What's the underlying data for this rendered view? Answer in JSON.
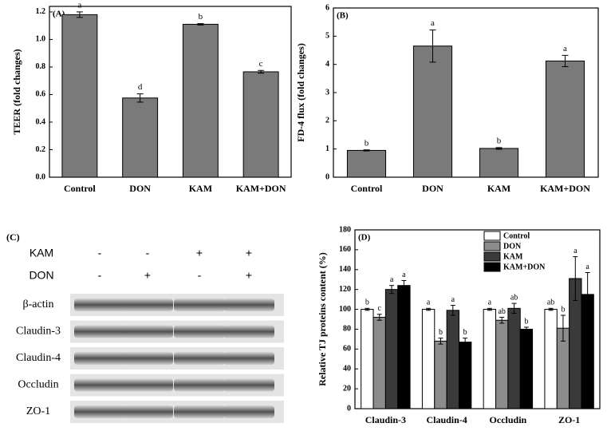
{
  "chart_data": [
    {
      "type": "bar",
      "panel": "(A)",
      "ylabel": "TEER (fold changes)",
      "categories": [
        "Control",
        "DON",
        "KAM",
        "KAM+DON"
      ],
      "values": [
        1.18,
        0.575,
        1.11,
        0.765
      ],
      "errors": [
        0.02,
        0.03,
        0.005,
        0.01
      ],
      "labels": [
        "a",
        "d",
        "b",
        "c"
      ],
      "color": "#7a7a7a",
      "ylim": [
        0,
        1.24
      ],
      "yticks": [
        {
          "value": 0,
          "label": "0.0"
        },
        0.2,
        0.4,
        0.6,
        0.8,
        {
          "value": 1,
          "label": "1.0"
        },
        1.2
      ]
    },
    {
      "type": "bar",
      "panel": "(B)",
      "ylabel": "FD-4 flux (fold changes)",
      "categories": [
        "Control",
        "DON",
        "KAM",
        "KAM+DON"
      ],
      "values": [
        0.95,
        4.65,
        1.02,
        4.12
      ],
      "errors": [
        0.02,
        0.57,
        0.03,
        0.2
      ],
      "labels": [
        "b",
        "a",
        "b",
        "a"
      ],
      "color": "#7a7a7a",
      "ylim": [
        0,
        6
      ],
      "yticks": [
        0,
        1,
        2,
        3,
        4,
        5,
        6
      ]
    },
    {
      "type": "bar",
      "panel": "(D)",
      "ylabel": "Relative TJ proteins content (%)",
      "categories": [
        "Claudin-3",
        "Claudin-4",
        "Occludin",
        "ZO-1"
      ],
      "series": [
        {
          "name": "Control",
          "color": "#ffffff",
          "values": [
            100,
            100,
            100,
            100
          ],
          "errors": [
            1,
            1,
            1,
            1
          ],
          "labels": [
            "b",
            "a",
            "a",
            "ab"
          ]
        },
        {
          "name": "DON",
          "color": "#8c8c8c",
          "values": [
            92,
            68,
            89,
            81
          ],
          "errors": [
            3,
            3,
            3,
            13
          ],
          "labels": [
            "c",
            "b",
            "ab",
            "b"
          ]
        },
        {
          "name": "KAM",
          "color": "#3a3a3a",
          "values": [
            120,
            99,
            101,
            131
          ],
          "errors": [
            4,
            5,
            5,
            22
          ],
          "labels": [
            "a",
            "a",
            "ab",
            "a"
          ]
        },
        {
          "name": "KAM+DON",
          "color": "#000000",
          "values": [
            124,
            67,
            80,
            115
          ],
          "errors": [
            5,
            4,
            2,
            22
          ],
          "labels": [
            "a",
            "b",
            "b",
            "a"
          ]
        }
      ],
      "legend": "upper right",
      "ylim": [
        0,
        180
      ],
      "yticks": [
        0,
        20,
        40,
        60,
        80,
        100,
        120,
        140,
        160,
        180
      ]
    }
  ],
  "blot": {
    "panel": "(C)",
    "treatments": [
      {
        "name": "KAM",
        "signs": [
          "-",
          "-",
          "+",
          "+"
        ]
      },
      {
        "name": "DON",
        "signs": [
          "-",
          "+",
          "-",
          "+"
        ]
      }
    ],
    "bands": [
      "β-actin",
      "Claudin-3",
      "Claudin-4",
      "Occludin",
      "ZO-1"
    ]
  }
}
